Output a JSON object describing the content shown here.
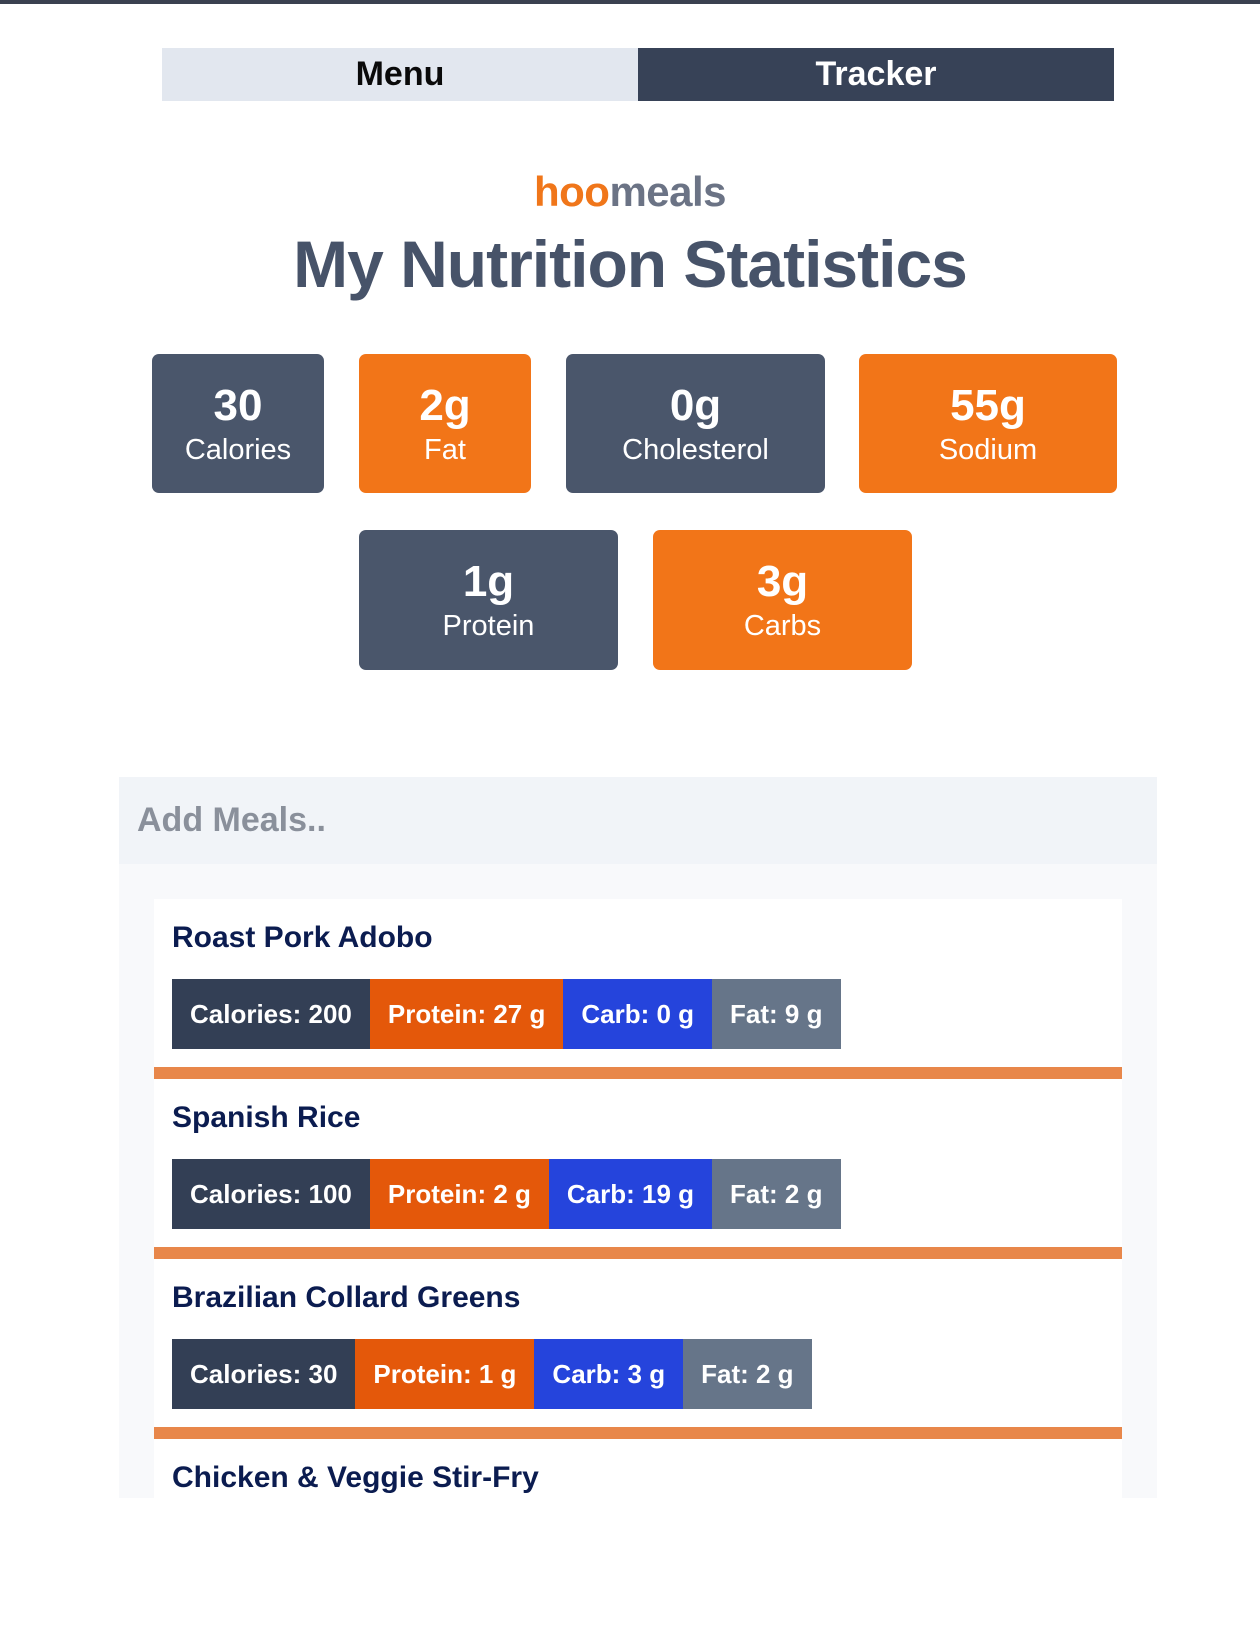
{
  "tabs": [
    {
      "label": "Menu",
      "active": false
    },
    {
      "label": "Tracker",
      "active": true
    }
  ],
  "brand": {
    "part1": "hoo",
    "part2": "meals",
    "part1_color": "#f0761a",
    "part2_color": "#6b7385"
  },
  "page_title": "My Nutrition Statistics",
  "stats": [
    {
      "value": "30",
      "label": "Calories"
    },
    {
      "value": "2g",
      "label": "Fat"
    },
    {
      "value": "0g",
      "label": "Cholesterol"
    },
    {
      "value": "55g",
      "label": "Sodium"
    },
    {
      "value": "1g",
      "label": "Protein"
    },
    {
      "value": "3g",
      "label": "Carbs"
    }
  ],
  "add_meals": {
    "header": "Add Meals.."
  },
  "meals": [
    {
      "name": "Roast Pork Adobo",
      "calories": "Calories: 200",
      "protein": "Protein: 27 g",
      "carb": "Carb: 0 g",
      "fat": "Fat: 9 g"
    },
    {
      "name": "Spanish Rice",
      "calories": "Calories: 100",
      "protein": "Protein: 2 g",
      "carb": "Carb: 19 g",
      "fat": "Fat: 2 g"
    },
    {
      "name": "Brazilian Collard Greens",
      "calories": "Calories: 30",
      "protein": "Protein: 1 g",
      "carb": "Carb: 3 g",
      "fat": "Fat: 2 g"
    },
    {
      "name": "Chicken & Veggie Stir-Fry"
    }
  ],
  "colors": {
    "accent_orange": "#f27518",
    "slate": "#4a566b",
    "calories_chip": "#333f55",
    "protein_chip": "#e4580a",
    "carb_chip": "#2544dc",
    "fat_chip": "#667589"
  }
}
